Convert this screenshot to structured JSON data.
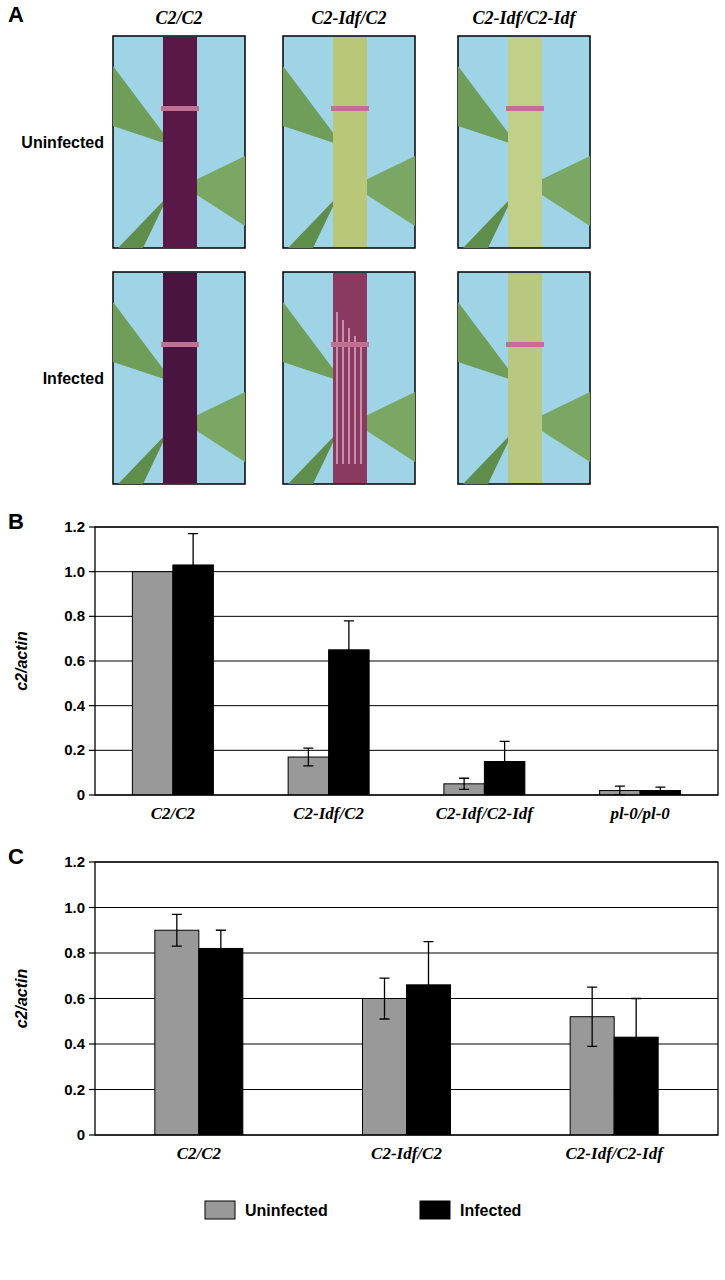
{
  "panel_a": {
    "label": "A",
    "columns": [
      "C2/C2",
      "C2-Idf/C2",
      "C2-Idf/C2-Idf"
    ],
    "rows": [
      "Uninfected",
      "Infected"
    ]
  },
  "chart_data": [
    {
      "type": "bar",
      "title": "B",
      "y_label": "c2/actin",
      "categories": [
        "C2/C2",
        "C2-Idf/C2",
        "C2-Idf/C2-Idf",
        "pl-0/pl-0"
      ],
      "series": [
        {
          "color": "#999999",
          "values": [
            1.0,
            0.17,
            0.05,
            0.02
          ],
          "errors": [
            null,
            0.04,
            0.025,
            0.02
          ]
        },
        {
          "color": "#000000",
          "values": [
            1.03,
            0.65,
            0.15,
            0.02
          ],
          "errors": [
            0.14,
            0.13,
            0.09,
            0.015
          ]
        }
      ],
      "ylim": [
        0,
        1.2
      ],
      "yticks": [
        0,
        0.2,
        0.4,
        0.6,
        0.8,
        {
          "value": 1,
          "label": "1.0"
        },
        1.2
      ],
      "grid": true
    },
    {
      "type": "bar",
      "title": "C",
      "y_label": "c2/actin",
      "categories": [
        "C2/C2",
        "C2-Idf/C2",
        "C2-Idf/C2-Idf"
      ],
      "series": [
        {
          "name": "Uninfected",
          "color": "#999999",
          "values": [
            0.9,
            0.6,
            0.52
          ],
          "errors": [
            0.07,
            0.09,
            0.13
          ]
        },
        {
          "name": "Infected",
          "color": "#000000",
          "values": [
            0.82,
            0.66,
            0.43
          ],
          "errors": [
            0.08,
            0.19,
            0.17
          ]
        }
      ],
      "ylim": [
        0,
        1.2
      ],
      "yticks": [
        0,
        0.2,
        0.4,
        0.6,
        0.8,
        {
          "value": 1,
          "label": "1.0"
        },
        1.2
      ],
      "grid": true,
      "legend": "bottom"
    }
  ]
}
